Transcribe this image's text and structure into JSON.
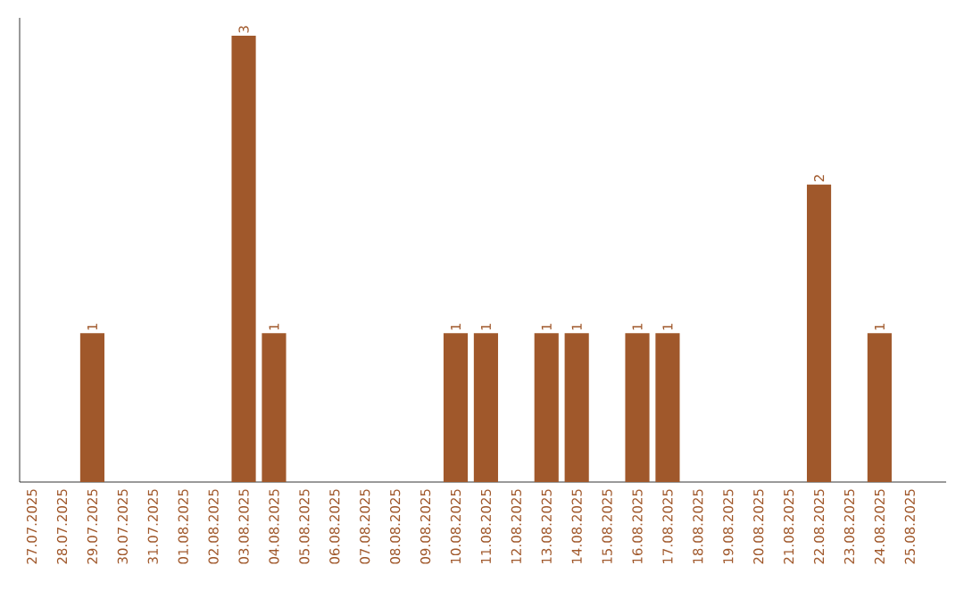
{
  "chart_data": {
    "type": "bar",
    "categories": [
      "27.07.2025",
      "28.07.2025",
      "29.07.2025",
      "30.07.2025",
      "31.07.2025",
      "01.08.2025",
      "02.08.2025",
      "03.08.2025",
      "04.08.2025",
      "05.08.2025",
      "06.08.2025",
      "07.08.2025",
      "08.08.2025",
      "09.08.2025",
      "10.08.2025",
      "11.08.2025",
      "12.08.2025",
      "13.08.2025",
      "14.08.2025",
      "15.08.2025",
      "16.08.2025",
      "17.08.2025",
      "18.08.2025",
      "19.08.2025",
      "20.08.2025",
      "21.08.2025",
      "22.08.2025",
      "23.08.2025",
      "24.08.2025",
      "25.08.2025"
    ],
    "values": [
      0,
      0,
      1,
      0,
      0,
      0,
      0,
      3,
      1,
      0,
      0,
      0,
      0,
      0,
      1,
      1,
      0,
      1,
      1,
      0,
      1,
      1,
      0,
      0,
      0,
      0,
      2,
      0,
      1,
      0
    ],
    "value_labels": [
      null,
      null,
      "1",
      null,
      null,
      null,
      null,
      "3",
      "1",
      null,
      null,
      null,
      null,
      null,
      "1",
      "1",
      null,
      "1",
      "1",
      null,
      "1",
      "1",
      null,
      null,
      null,
      null,
      "2",
      null,
      "1",
      null
    ],
    "color": "#a0582b"
  }
}
